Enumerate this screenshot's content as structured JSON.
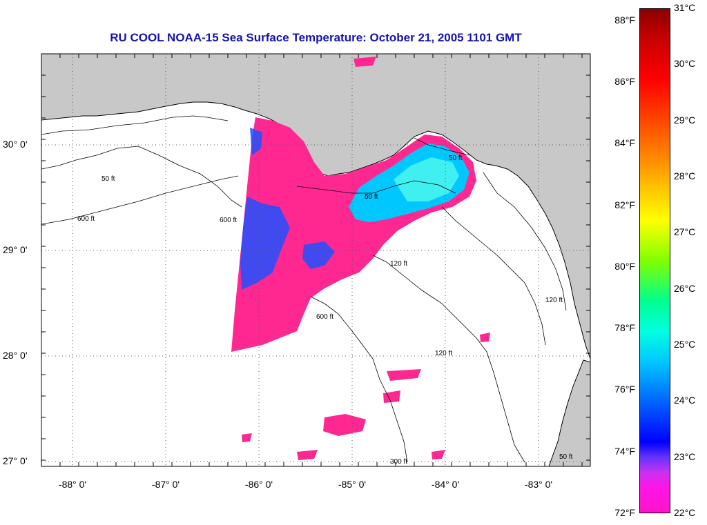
{
  "title": "RU COOL  NOAA-15  Sea Surface Temperature:  October 21, 2005 1101 GMT",
  "map": {
    "lat_ticks": [
      {
        "value": 30,
        "label": "30° 0'"
      },
      {
        "value": 29,
        "label": "29° 0'"
      },
      {
        "value": 28,
        "label": "28° 0'"
      },
      {
        "value": 27,
        "label": "27° 0'"
      }
    ],
    "lon_ticks": [
      {
        "value": -88,
        "label": "-88° 0'"
      },
      {
        "value": -87,
        "label": "-87° 0'"
      },
      {
        "value": -86,
        "label": "-86° 0'"
      },
      {
        "value": -85,
        "label": "-85° 0'"
      },
      {
        "value": -84,
        "label": "-84° 0'"
      },
      {
        "value": -83,
        "label": "-83° 0'"
      }
    ],
    "contour_labels": [
      "50 ft",
      "600 ft",
      "120 ft",
      "300 ft"
    ],
    "colors": {
      "land": "#c8c8c8",
      "sst_cold": "#ff2891",
      "sst_warm": "#00e6ff"
    }
  },
  "colorbar": {
    "fahrenheit": [
      {
        "value": 88,
        "label": "88°F"
      },
      {
        "value": 86,
        "label": "86°F"
      },
      {
        "value": 84,
        "label": "84°F"
      },
      {
        "value": 82,
        "label": "82°F"
      },
      {
        "value": 80,
        "label": "80°F"
      },
      {
        "value": 78,
        "label": "78°F"
      },
      {
        "value": 76,
        "label": "76°F"
      },
      {
        "value": 74,
        "label": "74°F"
      },
      {
        "value": 72,
        "label": "72°F"
      }
    ],
    "celsius": [
      {
        "value": 31,
        "label": "31°C"
      },
      {
        "value": 30,
        "label": "30°C"
      },
      {
        "value": 29,
        "label": "29°C"
      },
      {
        "value": 28,
        "label": "28°C"
      },
      {
        "value": 27,
        "label": "27°C"
      },
      {
        "value": 26,
        "label": "26°C"
      },
      {
        "value": 25,
        "label": "25°C"
      },
      {
        "value": 24,
        "label": "24°C"
      },
      {
        "value": 23,
        "label": "23°C"
      },
      {
        "value": 22,
        "label": "22°C"
      }
    ]
  }
}
